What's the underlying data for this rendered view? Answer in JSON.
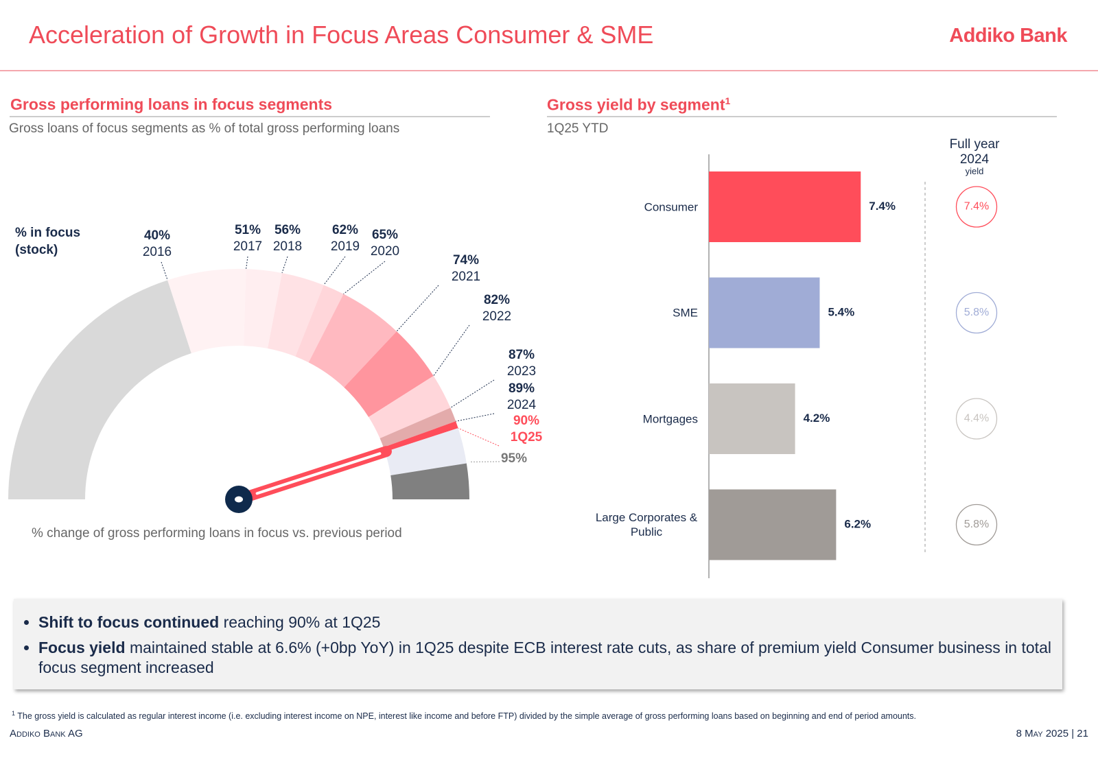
{
  "header": {
    "title": "Acceleration of Growth in Focus Areas Consumer & SME",
    "logo": "Addiko Bank"
  },
  "left_panel": {
    "title": "Gross performing loans in focus segments",
    "subtitle": "Gross loans of focus segments as % of total gross performing loans",
    "note": "% change of gross performing loans in focus vs. previous period"
  },
  "right_panel": {
    "title": "Gross yield by segment",
    "title_note": "1",
    "subtitle": "1Q25 YTD"
  },
  "chart_data": [
    {
      "type": "gauge",
      "axis_label": "% in focus (stock)",
      "categories": [
        "2016",
        "2017",
        "2018",
        "2019",
        "2020",
        "2021",
        "2022",
        "2023",
        "2024",
        "1Q25"
      ],
      "values": [
        40,
        51,
        56,
        62,
        65,
        74,
        82,
        87,
        89,
        90
      ],
      "value_labels": [
        "40%",
        "51%",
        "56%",
        "62%",
        "65%",
        "74%",
        "82%",
        "87%",
        "89%",
        "90%"
      ],
      "colors": [
        "#d9d9d9",
        "#fff2f3",
        "#ffeef0",
        "#ffe2e5",
        "#ffd6da",
        "#ffb9c0",
        "#ff959e",
        "#ffd6da",
        "#e3abab",
        "#ff4d5a"
      ],
      "target": 95,
      "target_label": "95%",
      "target_color": "#e9ebf4",
      "rest_color": "#808080",
      "needle_color": "#ff4d5a",
      "ylim": [
        0,
        100
      ]
    },
    {
      "type": "bar",
      "orientation": "horizontal",
      "categories": [
        "Consumer",
        "SME",
        "Mortgages",
        "Large Corporates & Public"
      ],
      "values": [
        7.4,
        5.4,
        4.2,
        6.2
      ],
      "value_labels": [
        "7.4%",
        "5.4%",
        "4.2%",
        "6.2%"
      ],
      "colors": [
        "#ff4d5a",
        "#a0acd6",
        "#c8c4c0",
        "#a09b97"
      ],
      "xlim": [
        0,
        10
      ],
      "comparison": {
        "title": "Full year 2024",
        "subtitle": "yield",
        "values": [
          7.4,
          5.8,
          4.4,
          5.8
        ],
        "value_labels": [
          "7.4%",
          "5.8%",
          "4.4%",
          "5.8%"
        ]
      }
    }
  ],
  "bullets": [
    {
      "bold": "Shift to focus continued",
      "text": "reaching 90% at 1Q25"
    },
    {
      "bold": "Focus yield",
      "text": "maintained stable at 6.6% (+0bp YoY) in 1Q25 despite ECB interest rate cuts, as share of premium yield Consumer business in total focus segment increased"
    }
  ],
  "footnote": {
    "mark": "1",
    "text": "The gross yield is calculated as regular interest income (i.e. excluding interest income on NPE, interest like income and before FTP) divided by the simple average of gross performing loans based on beginning and end of period amounts."
  },
  "footer": {
    "left": "Addiko Bank AG",
    "right": "8 May 2025 | 21"
  }
}
